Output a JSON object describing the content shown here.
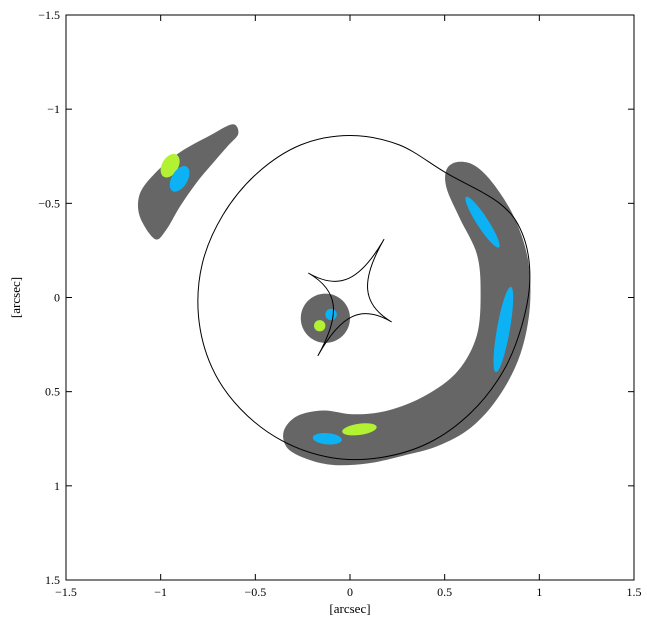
{
  "chart_data": {
    "type": "scatter",
    "xlabel": "[arcsec]",
    "ylabel": "[arcsec]",
    "xlim": [
      -1.5,
      1.5
    ],
    "ylim": [
      -1.5,
      1.5
    ],
    "y_inverted": true,
    "grid": false,
    "x_ticks": [
      -1.5,
      -1,
      -0.5,
      0,
      0.5,
      1,
      1.5
    ],
    "x_tick_labels": [
      "−1.5",
      "−1",
      "−0.5",
      "0",
      "0.5",
      "1",
      "1.5"
    ],
    "y_ticks": [
      -1.5,
      -1,
      -0.5,
      0,
      0.5,
      1,
      1.5
    ],
    "y_tick_labels": [
      "−1.5",
      "−1",
      "−0.5",
      "0",
      "0.5",
      "1",
      "1.5"
    ],
    "colors": {
      "image_region": "#666666",
      "source_a": "#b3f232",
      "source_b": "#0db2f5",
      "curves": "#000000"
    },
    "critical_curve": {
      "center": [
        0.0,
        0.0
      ],
      "points": [
        [
          0.51,
          -0.66
        ],
        [
          0.26,
          -0.81
        ],
        [
          0.0,
          -0.86
        ],
        [
          -0.26,
          -0.81
        ],
        [
          -0.49,
          -0.66
        ],
        [
          -0.67,
          -0.44
        ],
        [
          -0.78,
          -0.18
        ],
        [
          -0.8,
          0.1
        ],
        [
          -0.73,
          0.37
        ],
        [
          -0.58,
          0.59
        ],
        [
          -0.36,
          0.76
        ],
        [
          -0.1,
          0.85
        ],
        [
          0.16,
          0.85
        ],
        [
          0.42,
          0.77
        ],
        [
          0.64,
          0.61
        ],
        [
          0.81,
          0.39
        ],
        [
          0.91,
          0.14
        ],
        [
          0.95,
          -0.11
        ],
        [
          0.91,
          -0.34
        ],
        [
          0.79,
          -0.5
        ]
      ]
    },
    "caustic": {
      "cusps": [
        [
          0.18,
          -0.31
        ],
        [
          0.22,
          0.13
        ],
        [
          -0.17,
          0.31
        ],
        [
          -0.22,
          -0.13
        ]
      ]
    },
    "image_regions": [
      {
        "name": "upper-left-arc",
        "points": [
          [
            -1.03,
            -0.31
          ],
          [
            -1.11,
            -0.43
          ],
          [
            -1.11,
            -0.55
          ],
          [
            -1.03,
            -0.66
          ],
          [
            -0.9,
            -0.77
          ],
          [
            -0.74,
            -0.86
          ],
          [
            -0.62,
            -0.92
          ],
          [
            -0.59,
            -0.87
          ],
          [
            -0.64,
            -0.81
          ],
          [
            -0.71,
            -0.73
          ],
          [
            -0.81,
            -0.61
          ],
          [
            -0.9,
            -0.48
          ],
          [
            -0.97,
            -0.36
          ]
        ]
      },
      {
        "name": "right-arc",
        "points": [
          [
            0.51,
            -0.68
          ],
          [
            0.57,
            -0.72
          ],
          [
            0.66,
            -0.7
          ],
          [
            0.76,
            -0.6
          ],
          [
            0.87,
            -0.42
          ],
          [
            0.94,
            -0.2
          ],
          [
            0.95,
            0.05
          ],
          [
            0.9,
            0.3
          ],
          [
            0.79,
            0.52
          ],
          [
            0.64,
            0.69
          ],
          [
            0.46,
            0.79
          ],
          [
            0.28,
            0.84
          ],
          [
            0.1,
            0.88
          ],
          [
            -0.08,
            0.89
          ],
          [
            -0.22,
            0.86
          ],
          [
            -0.33,
            0.8
          ],
          [
            -0.35,
            0.71
          ],
          [
            -0.28,
            0.63
          ],
          [
            -0.14,
            0.6
          ],
          [
            0.02,
            0.62
          ],
          [
            0.2,
            0.6
          ],
          [
            0.4,
            0.52
          ],
          [
            0.57,
            0.39
          ],
          [
            0.67,
            0.2
          ],
          [
            0.69,
            -0.03
          ],
          [
            0.67,
            -0.23
          ],
          [
            0.58,
            -0.42
          ],
          [
            0.51,
            -0.58
          ]
        ]
      }
    ],
    "image_disk": {
      "center": [
        -0.13,
        0.11
      ],
      "radius": 0.13
    },
    "source_spots": [
      {
        "series": "a",
        "center": [
          -0.16,
          0.15
        ],
        "rx": 0.03,
        "ry": 0.03,
        "angle": 0
      },
      {
        "series": "b",
        "center": [
          -0.1,
          0.09
        ],
        "rx": 0.03,
        "ry": 0.03,
        "angle": 0
      },
      {
        "series": "a",
        "center": [
          -0.95,
          -0.7
        ],
        "rx": 0.043,
        "ry": 0.068,
        "angle": 30
      },
      {
        "series": "b",
        "center": [
          -0.9,
          -0.63
        ],
        "rx": 0.042,
        "ry": 0.075,
        "angle": 30
      },
      {
        "series": "b",
        "center": [
          0.7,
          -0.4
        ],
        "rx": 0.03,
        "ry": 0.16,
        "angle": -33
      },
      {
        "series": "b",
        "center": [
          0.81,
          0.17
        ],
        "rx": 0.034,
        "ry": 0.23,
        "angle": 10
      },
      {
        "series": "a",
        "center": [
          0.05,
          0.7
        ],
        "rx": 0.092,
        "ry": 0.03,
        "angle": -8
      },
      {
        "series": "b",
        "center": [
          -0.12,
          0.75
        ],
        "rx": 0.077,
        "ry": 0.03,
        "angle": 5
      }
    ]
  }
}
